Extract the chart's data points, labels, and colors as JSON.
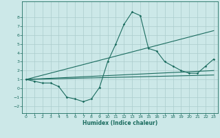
{
  "xlabel": "Humidex (Indice chaleur)",
  "background_color": "#cce8e8",
  "grid_color": "#aacccc",
  "line_color": "#1a6b5e",
  "xlim": [
    -0.5,
    23.5
  ],
  "ylim": [
    -2.8,
    9.8
  ],
  "yticks": [
    -2,
    -1,
    0,
    1,
    2,
    3,
    4,
    5,
    6,
    7,
    8
  ],
  "xticks": [
    0,
    1,
    2,
    3,
    4,
    5,
    6,
    7,
    8,
    9,
    10,
    11,
    12,
    13,
    14,
    15,
    16,
    17,
    18,
    19,
    20,
    21,
    22,
    23
  ],
  "series_main": {
    "x": [
      0,
      1,
      2,
      3,
      4,
      5,
      6,
      7,
      8,
      9,
      10,
      11,
      12,
      13,
      14,
      15,
      16,
      17,
      18,
      19,
      20,
      21,
      22,
      23
    ],
    "y": [
      1.0,
      0.8,
      0.6,
      0.6,
      0.2,
      -1.0,
      -1.2,
      -1.5,
      -1.2,
      0.1,
      3.0,
      5.0,
      7.2,
      8.6,
      8.2,
      4.5,
      4.2,
      3.0,
      2.5,
      2.0,
      1.7,
      1.7,
      2.5,
      3.3
    ]
  },
  "series_lines": [
    {
      "x": [
        0,
        23
      ],
      "y": [
        1.0,
        1.5
      ]
    },
    {
      "x": [
        0,
        23
      ],
      "y": [
        1.0,
        2.0
      ]
    },
    {
      "x": [
        0,
        23
      ],
      "y": [
        1.0,
        6.5
      ]
    }
  ],
  "figsize": [
    3.2,
    2.0
  ],
  "dpi": 100
}
